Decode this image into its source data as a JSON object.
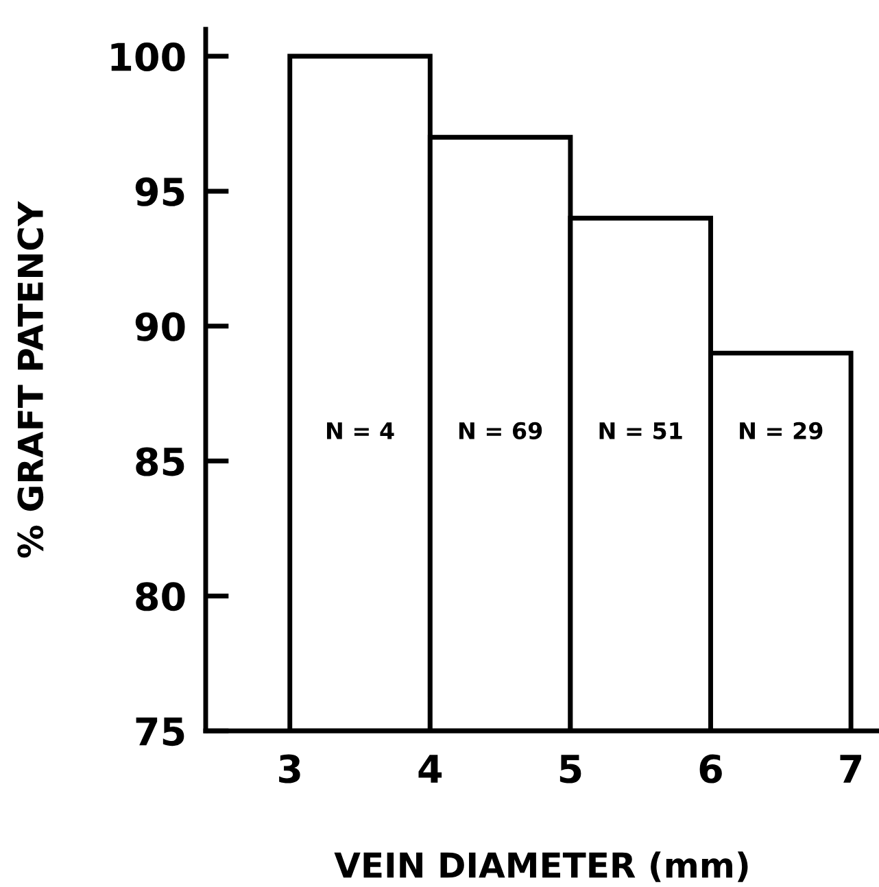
{
  "chart_data": {
    "type": "histogram",
    "bins": [
      3,
      4,
      5,
      6,
      7
    ],
    "values": [
      100,
      97,
      94,
      89
    ],
    "color": "#ffffff",
    "xlabel": "VEIN DIAMETER (mm)",
    "ylabel": "% GRAFT PATENCY",
    "xlim": [
      2.4,
      7.2
    ],
    "xticks": [
      3,
      4,
      5,
      6,
      7
    ],
    "ylim": [
      75,
      101
    ],
    "yticks": [
      75,
      80,
      85,
      90,
      95,
      100
    ],
    "annotations": [
      "N = 4",
      "N = 69",
      "N = 51",
      "N = 29"
    ],
    "grid": false,
    "legend": false
  }
}
